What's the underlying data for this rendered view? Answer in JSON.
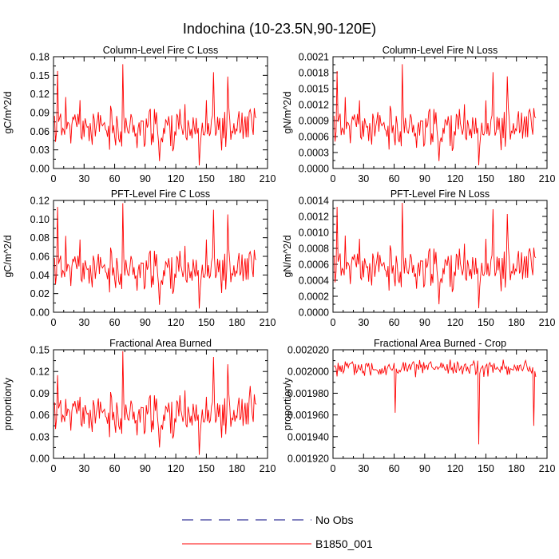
{
  "title": "Indochina (10-23.5N,90-120E)",
  "legend": {
    "items": [
      {
        "label": "No Obs",
        "color": "#00007f",
        "style": "dashed"
      },
      {
        "label": "B1850_001",
        "color": "#ff0000",
        "style": "solid"
      }
    ]
  },
  "chart_data": [
    {
      "type": "line",
      "title": "Column-Level Fire C Loss",
      "ylabel": "gC/m^2/d",
      "xlim": [
        0,
        210
      ],
      "ylim": [
        0,
        0.18
      ],
      "xticks": [
        0,
        30,
        60,
        90,
        120,
        150,
        180,
        210
      ],
      "yticks": [
        0.0,
        0.03,
        0.06,
        0.09,
        0.12,
        0.15,
        0.18
      ],
      "ytick_labels": [
        "0.00",
        "0.03",
        "0.06",
        "0.09",
        "0.12",
        "0.15",
        "0.18"
      ],
      "series": [
        {
          "name": "B1850_001",
          "color": "#ff0000",
          "base": 0.065,
          "amp": 0.025,
          "seed": 11,
          "y": [],
          "spikes": [
            [
              4,
              0.157
            ],
            [
              12,
              0.115
            ],
            [
              26,
              0.11
            ],
            [
              68,
              0.168
            ],
            [
              104,
              0.012
            ],
            [
              143,
              0.005
            ],
            [
              150,
              0.11
            ],
            [
              157,
              0.155
            ],
            [
              171,
              0.148
            ],
            [
              193,
              0.095
            ]
          ]
        }
      ]
    },
    {
      "type": "line",
      "title": "Column-Level Fire N Loss",
      "ylabel": "gN/m^2/d",
      "xlim": [
        0,
        210
      ],
      "ylim": [
        0,
        0.0021
      ],
      "xticks": [
        0,
        30,
        60,
        90,
        120,
        150,
        180,
        210
      ],
      "yticks": [
        0.0,
        0.0003,
        0.0006,
        0.0009,
        0.0012,
        0.0015,
        0.0018,
        0.0021
      ],
      "ytick_labels": [
        "0.0000",
        "0.0003",
        "0.0006",
        "0.0009",
        "0.0012",
        "0.0015",
        "0.0018",
        "0.0021"
      ],
      "series": [
        {
          "name": "B1850_001",
          "color": "#ff0000",
          "base": 0.00076,
          "amp": 0.00029,
          "seed": 11,
          "y": [],
          "spikes": [
            [
              4,
              0.00183
            ],
            [
              12,
              0.00134
            ],
            [
              26,
              0.00128
            ],
            [
              68,
              0.00196
            ],
            [
              104,
              0.00014
            ],
            [
              143,
              6e-05
            ],
            [
              150,
              0.00128
            ],
            [
              157,
              0.00181
            ],
            [
              171,
              0.00173
            ],
            [
              193,
              0.00111
            ]
          ]
        }
      ]
    },
    {
      "type": "line",
      "title": "PFT-Level Fire C Loss",
      "ylabel": "gC/m^2/d",
      "xlim": [
        0,
        210
      ],
      "ylim": [
        0,
        0.12
      ],
      "xticks": [
        0,
        30,
        60,
        90,
        120,
        150,
        180,
        210
      ],
      "yticks": [
        0.0,
        0.02,
        0.04,
        0.06,
        0.08,
        0.1,
        0.12
      ],
      "ytick_labels": [
        "0.00",
        "0.02",
        "0.04",
        "0.06",
        "0.08",
        "0.10",
        "0.12"
      ],
      "series": [
        {
          "name": "B1850_001",
          "color": "#ff0000",
          "base": 0.045,
          "amp": 0.017,
          "seed": 11,
          "y": [],
          "spikes": [
            [
              4,
              0.113
            ],
            [
              12,
              0.082
            ],
            [
              26,
              0.078
            ],
            [
              68,
              0.117
            ],
            [
              104,
              0.008
            ],
            [
              143,
              0.004
            ],
            [
              150,
              0.078
            ],
            [
              157,
              0.11
            ],
            [
              171,
              0.105
            ],
            [
              193,
              0.065
            ]
          ]
        }
      ]
    },
    {
      "type": "line",
      "title": "PFT-Level Fire N Loss",
      "ylabel": "gN/m^2/d",
      "xlim": [
        0,
        210
      ],
      "ylim": [
        0,
        0.0014
      ],
      "xticks": [
        0,
        30,
        60,
        90,
        120,
        150,
        180,
        210
      ],
      "yticks": [
        0.0,
        0.0002,
        0.0004,
        0.0006,
        0.0008,
        0.001,
        0.0012,
        0.0014
      ],
      "ytick_labels": [
        "0.0000",
        "0.0002",
        "0.0004",
        "0.0006",
        "0.0008",
        "0.0010",
        "0.0012",
        "0.0014"
      ],
      "series": [
        {
          "name": "B1850_001",
          "color": "#ff0000",
          "base": 0.00055,
          "amp": 0.0002,
          "seed": 11,
          "y": [],
          "spikes": [
            [
              4,
              0.00132
            ],
            [
              12,
              0.00096
            ],
            [
              26,
              0.00092
            ],
            [
              68,
              0.00137
            ],
            [
              104,
              0.0001
            ],
            [
              143,
              5e-05
            ],
            [
              150,
              0.00092
            ],
            [
              157,
              0.00129
            ],
            [
              171,
              0.00123
            ],
            [
              193,
              0.0008
            ]
          ]
        }
      ]
    },
    {
      "type": "line",
      "title": "Fractional Area Burned",
      "ylabel": "proportion/y",
      "xlim": [
        0,
        210
      ],
      "ylim": [
        0,
        0.15
      ],
      "xticks": [
        0,
        30,
        60,
        90,
        120,
        150,
        180,
        210
      ],
      "yticks": [
        0.0,
        0.03,
        0.06,
        0.09,
        0.12,
        0.15
      ],
      "ytick_labels": [
        "0.00",
        "0.03",
        "0.06",
        "0.09",
        "0.12",
        "0.15"
      ],
      "series": [
        {
          "name": "B1850_001",
          "color": "#ff0000",
          "base": 0.06,
          "amp": 0.022,
          "seed": 11,
          "y": [],
          "spikes": [
            [
              4,
              0.115
            ],
            [
              12,
              0.082
            ],
            [
              26,
              0.085
            ],
            [
              68,
              0.148
            ],
            [
              104,
              0.015
            ],
            [
              143,
              0.005
            ],
            [
              150,
              0.085
            ],
            [
              157,
              0.14
            ],
            [
              171,
              0.13
            ],
            [
              193,
              0.1
            ]
          ]
        }
      ]
    },
    {
      "type": "line",
      "title": "Fractional Area Burned - Crop",
      "ylabel": "proportion/y",
      "xlim": [
        0,
        210
      ],
      "ylim": [
        0.00192,
        0.00202
      ],
      "xticks": [
        0,
        30,
        60,
        90,
        120,
        150,
        180,
        210
      ],
      "yticks": [
        0.00192,
        0.00194,
        0.00196,
        0.00198,
        0.002,
        0.00202
      ],
      "ytick_labels": [
        "0.001920",
        "0.001940",
        "0.001960",
        "0.001980",
        "0.002000",
        "0.002020"
      ],
      "series": [
        {
          "name": "B1850_001",
          "color": "#ff0000",
          "base": 0.002003,
          "amp": 5.5e-06,
          "seed": 5,
          "y": [],
          "spikes": [
            [
              61,
              0.001962
            ],
            [
              143,
              0.001933
            ],
            [
              197,
              0.00195
            ],
            [
              199,
              0.001995
            ]
          ]
        }
      ]
    }
  ]
}
